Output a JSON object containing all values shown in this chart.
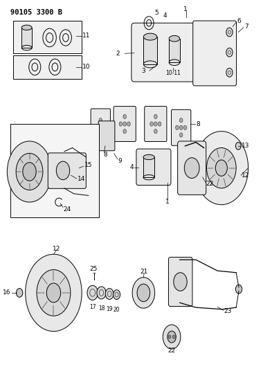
{
  "title": "90105 3300 B",
  "bg_color": "#ffffff",
  "line_color": "#000000",
  "fig_width": 3.93,
  "fig_height": 5.33,
  "dpi": 100
}
